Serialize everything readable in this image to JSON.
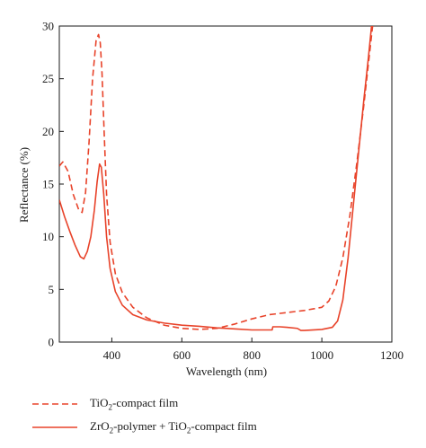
{
  "chart_data": {
    "type": "line",
    "xlabel": "Wavelength (nm)",
    "ylabel": "Reflectance (%)",
    "xlim": [
      250,
      1200
    ],
    "ylim": [
      0,
      30
    ],
    "xticks": [
      400,
      600,
      800,
      1000,
      1200
    ],
    "yticks": [
      0,
      5,
      10,
      15,
      20,
      25,
      30
    ],
    "grid": false,
    "legend_position": "bottom",
    "series": [
      {
        "name": "TiO2-compact film",
        "name_parts": {
          "pre": "TiO",
          "sub": "2",
          "post": "-compact film"
        },
        "style": "dashed",
        "color": "#e8432a",
        "x": [
          250,
          260,
          275,
          290,
          305,
          315,
          325,
          335,
          345,
          355,
          362,
          367,
          372,
          378,
          385,
          395,
          410,
          430,
          460,
          500,
          550,
          600,
          650,
          700,
          750,
          800,
          850,
          900,
          950,
          1000,
          1020,
          1040,
          1060,
          1080,
          1100,
          1120,
          1135,
          1145
        ],
        "y": [
          16.7,
          17.1,
          16.2,
          14.0,
          12.6,
          12.3,
          14.2,
          19.0,
          25.0,
          28.6,
          29.2,
          28.4,
          25.5,
          20.0,
          14.0,
          9.5,
          6.5,
          4.7,
          3.3,
          2.3,
          1.6,
          1.3,
          1.2,
          1.3,
          1.7,
          2.2,
          2.6,
          2.8,
          3.0,
          3.3,
          3.9,
          5.3,
          8.0,
          12.0,
          17.0,
          22.5,
          27.0,
          30.0
        ]
      },
      {
        "name": "ZrO2-polymer + TiO2-compact film",
        "name_parts": {
          "pre": "ZrO",
          "sub": "2",
          "mid": "-polymer + TiO",
          "sub2": "2",
          "post": "-compact film"
        },
        "style": "solid",
        "color": "#e8432a",
        "x": [
          250,
          265,
          280,
          295,
          310,
          320,
          330,
          340,
          350,
          358,
          365,
          370,
          377,
          385,
          395,
          410,
          430,
          460,
          500,
          550,
          600,
          650,
          700,
          750,
          800,
          850,
          858,
          860,
          880,
          900,
          930,
          940,
          950,
          1000,
          1030,
          1045,
          1060,
          1075,
          1090,
          1105,
          1120,
          1133,
          1142
        ],
        "y": [
          13.5,
          11.9,
          10.5,
          9.2,
          8.1,
          7.9,
          8.6,
          10.0,
          12.5,
          15.2,
          16.9,
          16.6,
          14.0,
          10.0,
          7.0,
          4.8,
          3.5,
          2.6,
          2.1,
          1.8,
          1.6,
          1.5,
          1.35,
          1.25,
          1.15,
          1.15,
          1.15,
          1.45,
          1.45,
          1.4,
          1.3,
          1.1,
          1.1,
          1.2,
          1.4,
          2.0,
          4.0,
          8.0,
          13.0,
          18.0,
          23.0,
          27.0,
          30.0
        ]
      }
    ]
  }
}
